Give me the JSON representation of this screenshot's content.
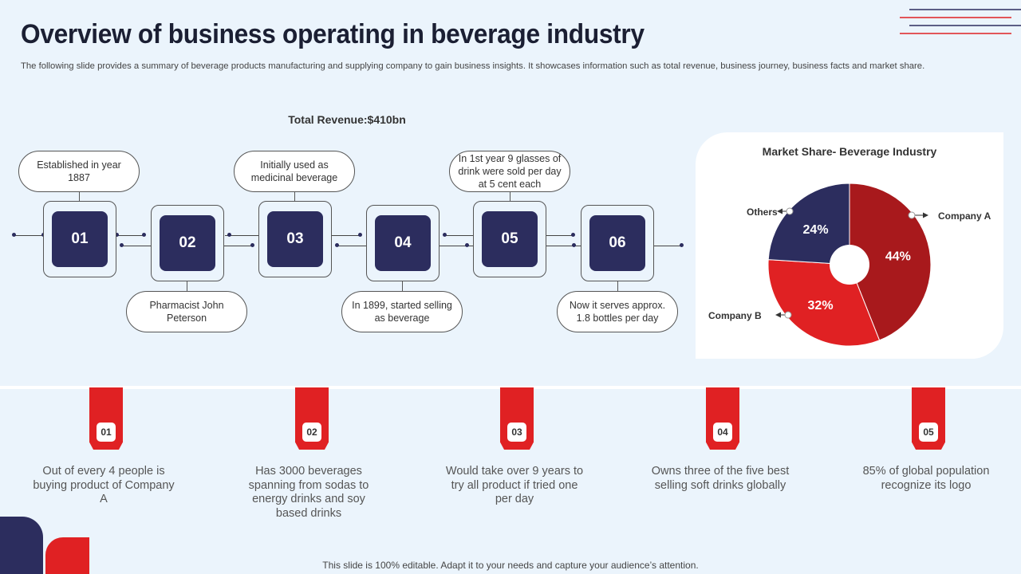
{
  "header": {
    "title": "Overview of business operating in beverage industry",
    "subtitle": "The following slide provides a summary of beverage products manufacturing and supplying company to gain business insights. It showcases information such as total revenue, business journey, business facts and market share."
  },
  "revenue": {
    "label": "Total Revenue:$410bn"
  },
  "timeline": [
    {
      "num": "01",
      "note": "Established in year 1887"
    },
    {
      "num": "02",
      "note": "Pharmacist John Peterson"
    },
    {
      "num": "03",
      "note": "Initially used as medicinal beverage"
    },
    {
      "num": "04",
      "note": "In 1899, started selling as beverage"
    },
    {
      "num": "05",
      "note": "In 1st year 9 glasses of drink were sold per day at 5 cent each"
    },
    {
      "num": "06",
      "note": "Now it serves approx. 1.8 bottles per day"
    }
  ],
  "chart_data": {
    "type": "pie",
    "title": "Market Share- Beverage Industry",
    "categories": [
      "Company A",
      "Company B",
      "Others"
    ],
    "values": [
      44,
      32,
      24
    ],
    "labels": [
      "44%",
      "32%",
      "24%"
    ],
    "colors": [
      "#a8191c",
      "#e02123",
      "#2c2d5e"
    ],
    "donut": true
  },
  "facts": [
    {
      "num": "01",
      "text": "Out of every 4 people is buying product of Company A"
    },
    {
      "num": "02",
      "text": "Has 3000 beverages spanning from sodas to energy drinks and soy based drinks"
    },
    {
      "num": "03",
      "text": "Would take over 9 years to try all product if tried one per day"
    },
    {
      "num": "04",
      "text": "Owns three of the five best selling soft drinks globally"
    },
    {
      "num": "05",
      "text": "85% of global population recognize its logo"
    }
  ],
  "footer": {
    "text": "This slide is 100% editable. Adapt it to your needs and capture your audience’s attention."
  },
  "colors": {
    "navy": "#2c2d5e",
    "red": "#e02123",
    "dark_red": "#a8191c",
    "background": "#ebf4fc"
  }
}
